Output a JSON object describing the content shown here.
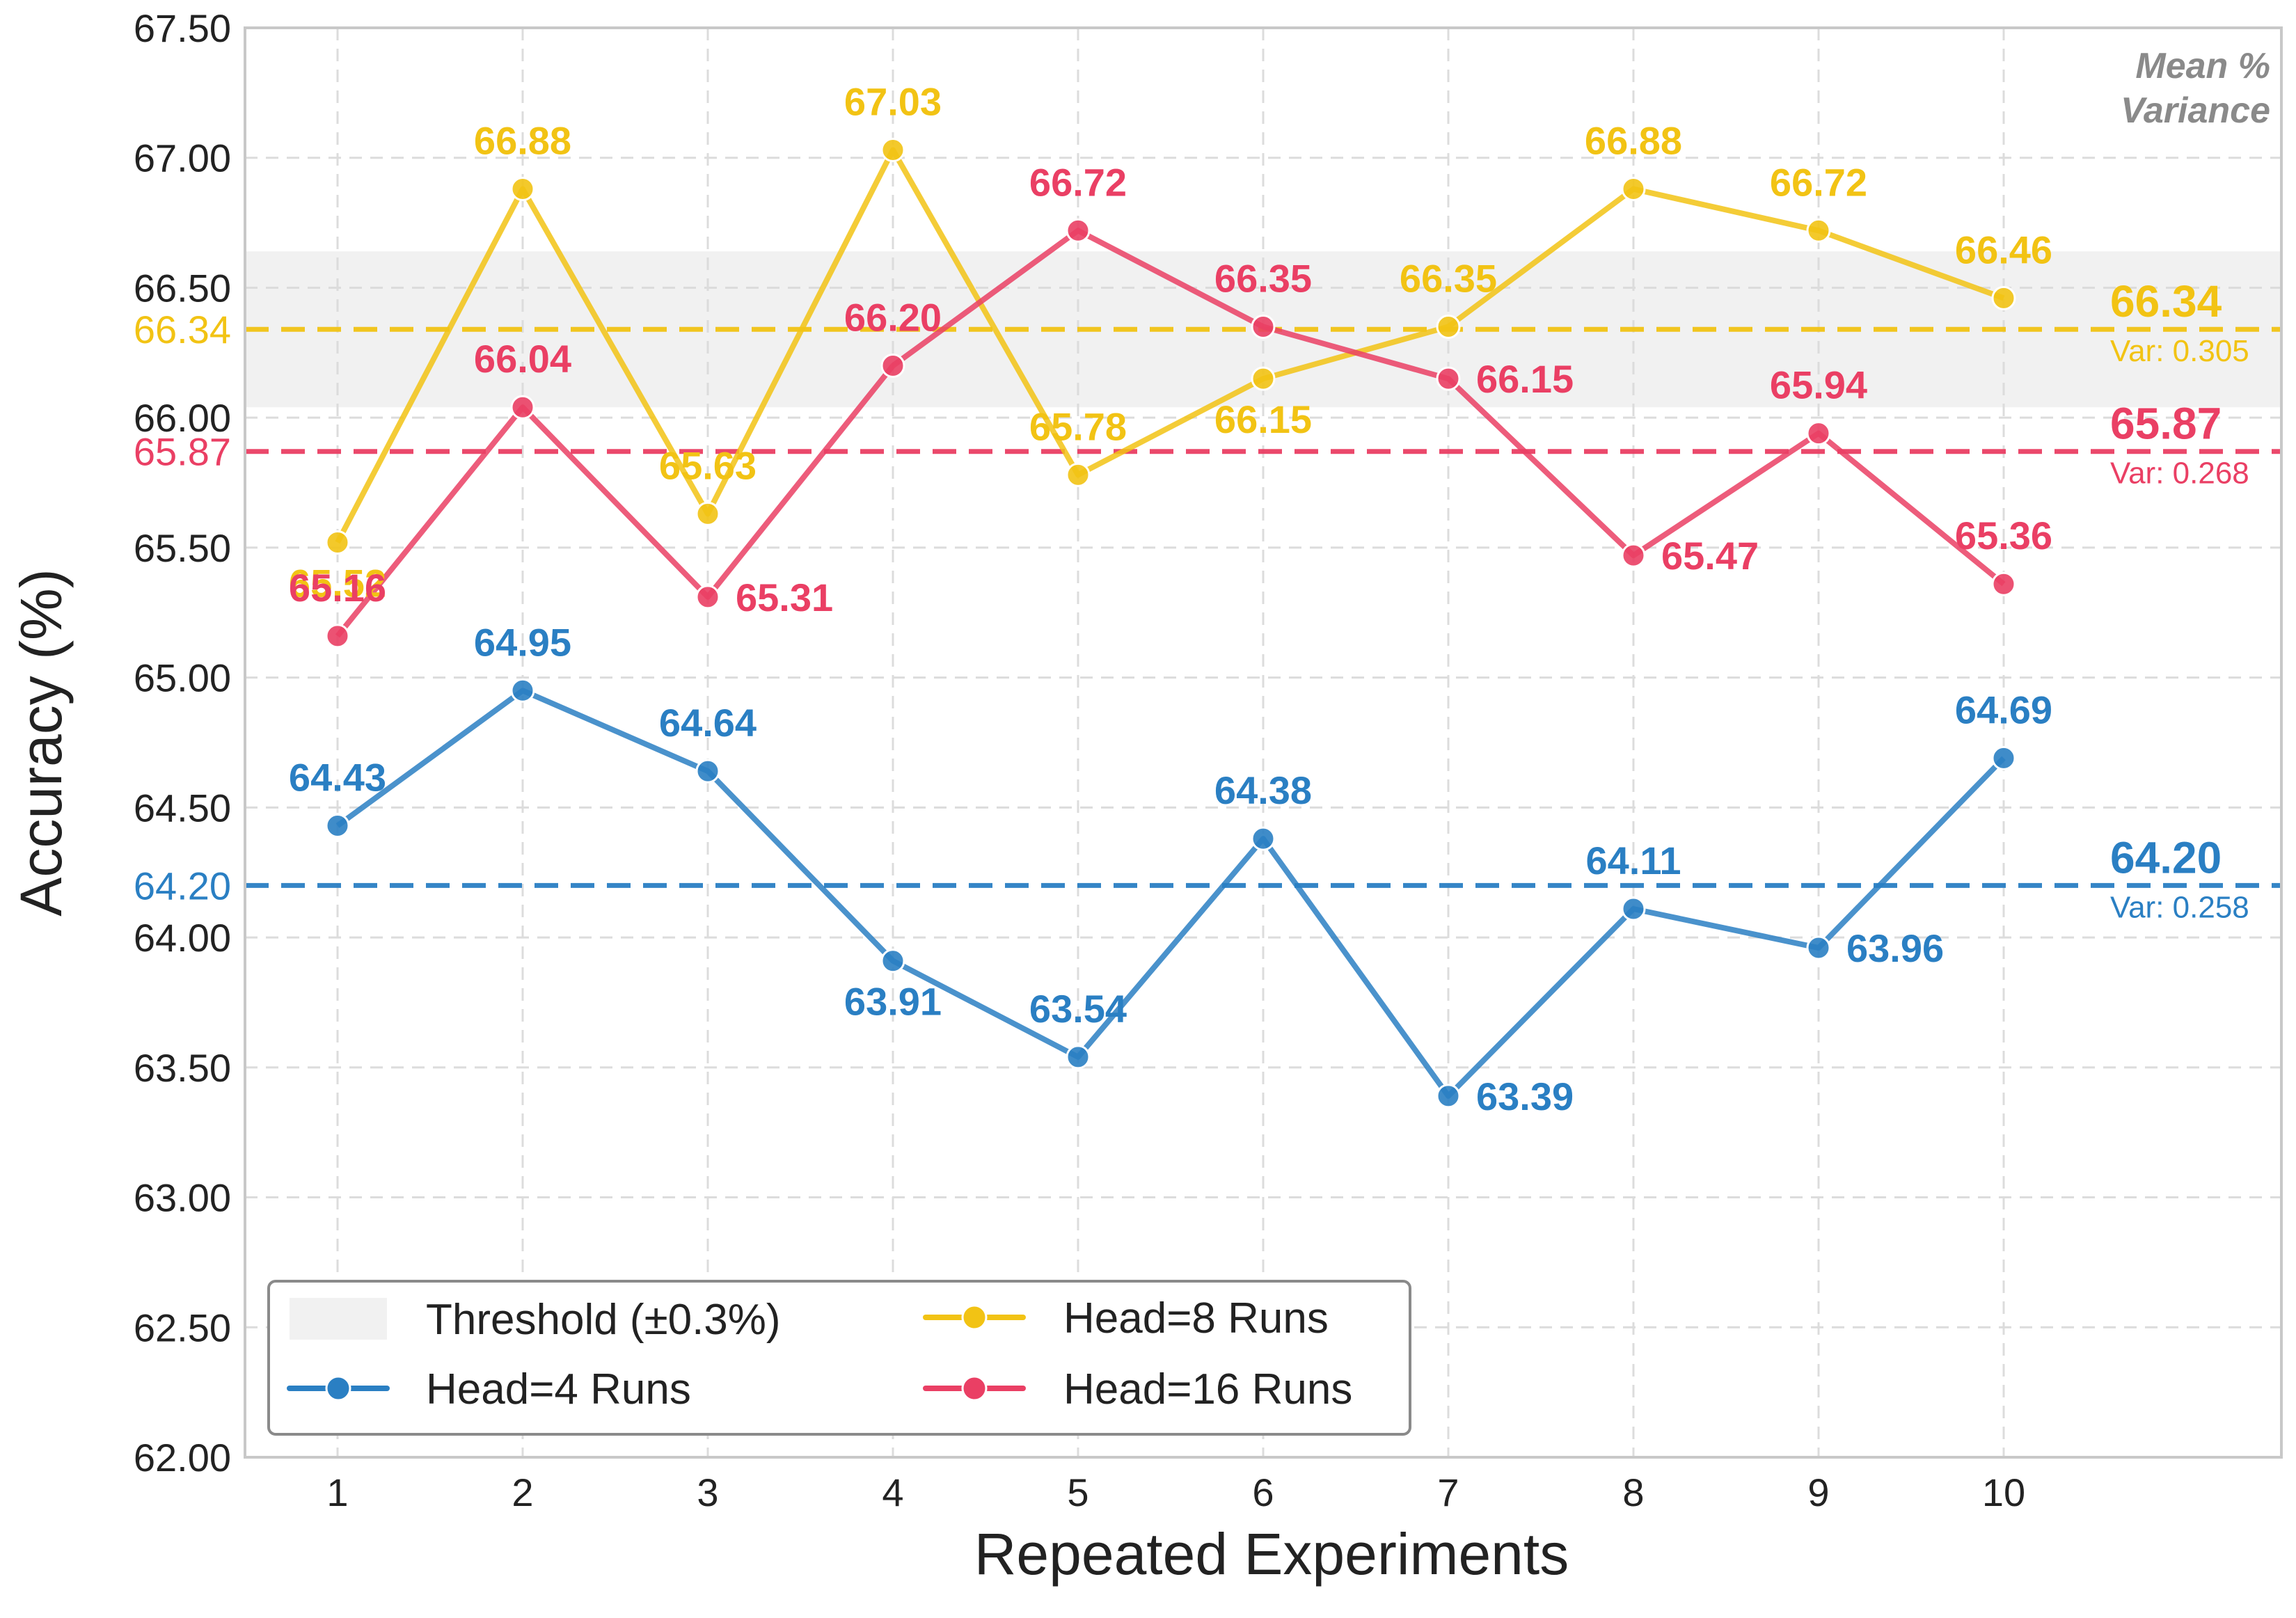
{
  "chart_data": {
    "type": "line",
    "xlabel": "Repeated Experiments",
    "ylabel": "Accuracy (%)",
    "x": [
      1,
      2,
      3,
      4,
      5,
      6,
      7,
      8,
      9,
      10
    ],
    "x_tick_labels": [
      "1",
      "2",
      "3",
      "4",
      "5",
      "6",
      "7",
      "8",
      "9",
      "10"
    ],
    "xlim": [
      0.5,
      11.5
    ],
    "ylim": [
      62.0,
      67.5
    ],
    "y_ticks": [
      62.0,
      62.5,
      63.0,
      63.5,
      64.0,
      64.5,
      65.0,
      65.5,
      66.0,
      66.5,
      67.0,
      67.5
    ],
    "y_tick_labels": [
      "62.00",
      "62.50",
      "63.00",
      "63.50",
      "64.00",
      "64.50",
      "65.00",
      "65.50",
      "66.00",
      "66.50",
      "67.00",
      "67.50"
    ],
    "grid": true,
    "legend_position": "bottom-left",
    "corner_note": [
      "Mean %",
      "Variance"
    ],
    "threshold_band": {
      "label": "Threshold (±0.3%)",
      "range": [
        66.04,
        66.64
      ],
      "color": "#e0e0e0"
    },
    "series": [
      {
        "name": "Head=4 Runs",
        "color": "#2a7fc3",
        "values": [
          64.43,
          64.95,
          64.64,
          63.91,
          63.54,
          64.38,
          63.39,
          64.11,
          63.96,
          64.69
        ],
        "labels": [
          "64.43",
          "64.95",
          "64.64",
          "63.91",
          "63.54",
          "64.38",
          "63.39",
          "64.11",
          "63.96",
          "64.69"
        ],
        "mean": 64.2,
        "mean_label": "64.20",
        "variance_label": "Var: 0.258"
      },
      {
        "name": "Head=8 Runs",
        "color": "#f2c314",
        "values": [
          65.52,
          66.88,
          65.63,
          67.03,
          65.78,
          66.15,
          66.35,
          66.88,
          66.72,
          66.46
        ],
        "labels": [
          "65.52",
          "66.88",
          "65.63",
          "67.03",
          "65.78",
          "66.15",
          "66.35",
          "66.88",
          "66.72",
          "66.46"
        ],
        "mean": 66.34,
        "mean_label": "66.34",
        "variance_label": "Var: 0.305"
      },
      {
        "name": "Head=16 Runs",
        "color": "#ea3f64",
        "values": [
          65.16,
          66.04,
          65.31,
          66.2,
          66.72,
          66.35,
          66.15,
          65.47,
          65.94,
          65.36
        ],
        "labels": [
          "65.16",
          "66.04",
          "65.31",
          "66.20",
          "66.72",
          "66.35",
          "66.15",
          "65.47",
          "65.94",
          "65.36"
        ],
        "mean": 65.87,
        "mean_label": "65.87",
        "variance_label": "Var: 0.268"
      }
    ]
  }
}
